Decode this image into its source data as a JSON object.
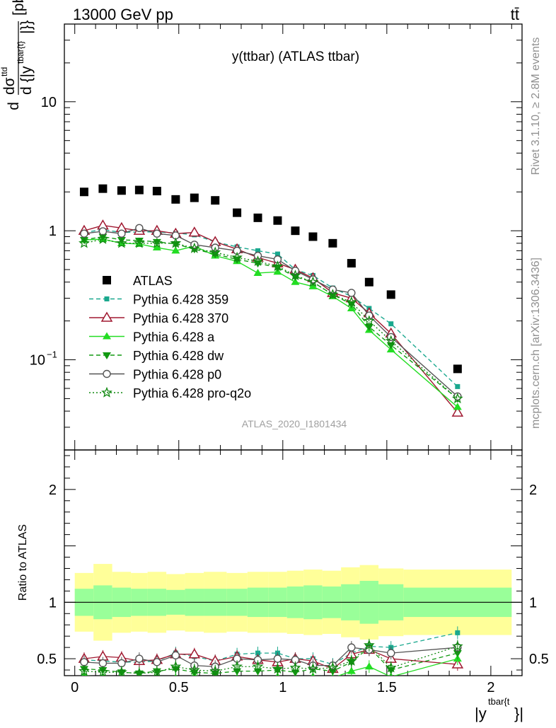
{
  "header": {
    "left": "13000 GeV pp",
    "right": "tt̄"
  },
  "side_labels": {
    "rivet": "Rivet 3.1.10, ≥ 2.8M events",
    "mcplots": "mcplots.cern.ch [arXiv:1306.3436]"
  },
  "colors": {
    "atlas": "#000000",
    "p359": "#1aa88e",
    "p370": "#a01830",
    "pa": "#22dd22",
    "pdw": "#119911",
    "pp0": "#555555",
    "pq2o": "#118811",
    "band_inner": "#99ff99",
    "band_outer": "#ffff99"
  },
  "chart_data": [
    {
      "type": "scatter",
      "title": "y(ttbar) (ATLAS ttbar)",
      "ylabel": "dσ/d{|y^tbar{t}|} [pb]",
      "ylabel_parts": {
        "d": "d",
        "sigma": "dσ",
        "sup": "ttd",
        "den": "d {|y",
        "den_sup": "tbar{t}",
        "den_tail": "|}}",
        "unit": "[pb]"
      },
      "yscale": "log",
      "ylim": [
        0.02,
        40
      ],
      "xlim": [
        -0.05,
        2.15
      ],
      "yticks": [
        {
          "v": 0.1,
          "label": "10",
          "sup": "−1"
        },
        {
          "v": 1,
          "label": "1"
        },
        {
          "v": 10,
          "label": "10"
        }
      ],
      "watermark": "ATLAS_2020_I1801434",
      "x": [
        0.045,
        0.135,
        0.225,
        0.31,
        0.395,
        0.485,
        0.575,
        0.675,
        0.78,
        0.88,
        0.975,
        1.06,
        1.145,
        1.24,
        1.33,
        1.415,
        1.52,
        1.84
      ],
      "series": [
        {
          "name": "ATLAS",
          "key": "atlas",
          "marker": "square-filled",
          "line": "none",
          "values": [
            2.0,
            2.12,
            2.05,
            2.07,
            2.03,
            1.75,
            1.8,
            1.72,
            1.38,
            1.26,
            1.2,
            1.0,
            0.9,
            0.8,
            0.56,
            0.4,
            0.32,
            0.085
          ]
        },
        {
          "name": "Pythia 6.428 359",
          "key": "p359",
          "marker": "square-small",
          "line": "dashed",
          "values": [
            0.97,
            1.02,
            0.97,
            0.98,
            0.98,
            0.96,
            0.93,
            0.82,
            0.75,
            0.7,
            0.66,
            0.5,
            0.45,
            0.36,
            0.31,
            0.25,
            0.19,
            0.062
          ]
        },
        {
          "name": "Pythia 6.428 370",
          "key": "p370",
          "marker": "triangle-open",
          "line": "solid",
          "values": [
            1.0,
            1.1,
            1.05,
            1.0,
            1.0,
            0.95,
            0.97,
            0.82,
            0.72,
            0.62,
            0.56,
            0.5,
            0.43,
            0.33,
            0.3,
            0.23,
            0.16,
            0.039
          ]
        },
        {
          "name": "Pythia 6.428 a",
          "key": "pa",
          "marker": "triangle-filled",
          "line": "solid",
          "values": [
            0.85,
            0.86,
            0.8,
            0.79,
            0.74,
            0.7,
            0.76,
            0.64,
            0.58,
            0.47,
            0.48,
            0.4,
            0.37,
            0.31,
            0.25,
            0.17,
            0.12,
            0.043
          ]
        },
        {
          "name": "Pythia 6.428 dw",
          "key": "pdw",
          "marker": "triangle-down-filled",
          "line": "dashed",
          "values": [
            0.85,
            0.9,
            0.85,
            0.84,
            0.82,
            0.79,
            0.72,
            0.66,
            0.6,
            0.56,
            0.52,
            0.44,
            0.4,
            0.32,
            0.27,
            0.18,
            0.13,
            0.05
          ]
        },
        {
          "name": "Pythia 6.428 p0",
          "key": "pp0",
          "marker": "circle-open",
          "line": "solid",
          "values": [
            0.95,
            0.99,
            0.95,
            1.05,
            0.95,
            0.92,
            0.78,
            0.74,
            0.7,
            0.64,
            0.6,
            0.49,
            0.42,
            0.35,
            0.33,
            0.22,
            0.15,
            0.052
          ]
        },
        {
          "name": "Pythia 6.428 pro-q2o",
          "key": "pq2o",
          "marker": "star-open",
          "line": "dotted",
          "values": [
            0.8,
            0.86,
            0.8,
            0.8,
            0.8,
            0.8,
            0.73,
            0.68,
            0.62,
            0.58,
            0.53,
            0.45,
            0.4,
            0.32,
            0.28,
            0.2,
            0.14,
            0.05
          ]
        }
      ]
    },
    {
      "type": "scatter",
      "ylabel": "Ratio to ATLAS",
      "xlabel": "|y^tbar{t}|",
      "xlabel_parts": {
        "base": "|y",
        "sup": "tbar{t",
        "tail": "}|"
      },
      "ylim": [
        0.35,
        2.35
      ],
      "xlim": [
        -0.05,
        2.15
      ],
      "yticks": [
        0.5,
        1,
        2
      ],
      "xticks": [
        0,
        0.5,
        1,
        1.5,
        2
      ],
      "band_edges": [
        0,
        0.09,
        0.18,
        0.27,
        0.35,
        0.44,
        0.53,
        0.62,
        0.73,
        0.83,
        0.93,
        1.02,
        1.1,
        1.19,
        1.28,
        1.37,
        1.46,
        1.58,
        2.1
      ],
      "band_inner": [
        [
          0.88,
          1.12
        ],
        [
          0.85,
          1.15
        ],
        [
          0.87,
          1.13
        ],
        [
          0.88,
          1.12
        ],
        [
          0.88,
          1.12
        ],
        [
          0.89,
          1.11
        ],
        [
          0.88,
          1.12
        ],
        [
          0.88,
          1.12
        ],
        [
          0.88,
          1.12
        ],
        [
          0.87,
          1.13
        ],
        [
          0.87,
          1.13
        ],
        [
          0.86,
          1.14
        ],
        [
          0.85,
          1.15
        ],
        [
          0.86,
          1.14
        ],
        [
          0.84,
          1.16
        ],
        [
          0.81,
          1.19
        ],
        [
          0.84,
          1.16
        ],
        [
          0.87,
          1.13
        ]
      ],
      "band_outer": [
        [
          0.74,
          1.26
        ],
        [
          0.66,
          1.34
        ],
        [
          0.73,
          1.27
        ],
        [
          0.74,
          1.26
        ],
        [
          0.73,
          1.27
        ],
        [
          0.75,
          1.25
        ],
        [
          0.74,
          1.26
        ],
        [
          0.73,
          1.27
        ],
        [
          0.74,
          1.26
        ],
        [
          0.73,
          1.27
        ],
        [
          0.73,
          1.27
        ],
        [
          0.72,
          1.28
        ],
        [
          0.71,
          1.29
        ],
        [
          0.72,
          1.28
        ],
        [
          0.69,
          1.31
        ],
        [
          0.67,
          1.33
        ],
        [
          0.7,
          1.3
        ],
        [
          0.71,
          1.29
        ]
      ],
      "series": [
        {
          "key": "p359",
          "values": [
            0.49,
            0.48,
            0.47,
            0.47,
            0.48,
            0.55,
            0.52,
            0.48,
            0.54,
            0.55,
            0.55,
            0.5,
            0.5,
            0.45,
            0.55,
            0.61,
            0.6,
            0.73
          ]
        },
        {
          "key": "p370",
          "values": [
            0.5,
            0.52,
            0.51,
            0.48,
            0.49,
            0.54,
            0.54,
            0.48,
            0.52,
            0.49,
            0.47,
            0.5,
            0.48,
            0.41,
            0.54,
            0.58,
            0.5,
            0.45
          ]
        },
        {
          "key": "pa",
          "values": [
            0.35,
            0.34,
            0.33,
            0.32,
            0.31,
            0.33,
            0.35,
            0.33,
            0.33,
            0.32,
            0.34,
            0.33,
            0.34,
            0.33,
            0.39,
            0.43,
            0.34,
            0.5
          ]
        },
        {
          "key": "pdw",
          "values": [
            0.41,
            0.4,
            0.38,
            0.37,
            0.39,
            0.41,
            0.38,
            0.37,
            0.39,
            0.39,
            0.4,
            0.38,
            0.41,
            0.39,
            0.47,
            0.6,
            0.4,
            0.55
          ]
        },
        {
          "key": "pp0",
          "values": [
            0.47,
            0.46,
            0.46,
            0.5,
            0.47,
            0.53,
            0.44,
            0.43,
            0.5,
            0.49,
            0.5,
            0.49,
            0.44,
            0.44,
            0.6,
            0.58,
            0.55,
            0.6
          ]
        },
        {
          "key": "pq2o",
          "values": [
            0.39,
            0.38,
            0.38,
            0.37,
            0.38,
            0.43,
            0.4,
            0.39,
            0.43,
            0.43,
            0.41,
            0.42,
            0.41,
            0.42,
            0.48,
            0.62,
            0.42,
            0.61
          ]
        }
      ]
    }
  ]
}
